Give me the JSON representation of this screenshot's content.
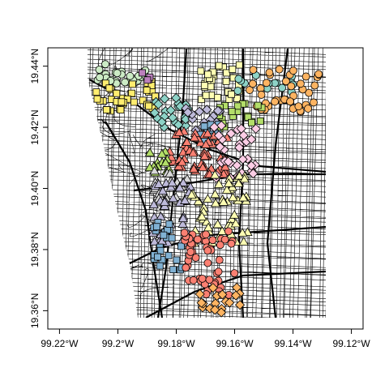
{
  "chart_data": {
    "type": "scatter",
    "title": "",
    "xlabel": "",
    "ylabel": "",
    "xlim": [
      -99.224,
      -99.116
    ],
    "ylim": [
      19.354,
      19.446
    ],
    "x_ticks": [
      {
        "value": -99.22,
        "label": "99.22°W"
      },
      {
        "value": -99.2,
        "label": "99.2°W"
      },
      {
        "value": -99.18,
        "label": "99.18°W"
      },
      {
        "value": -99.16,
        "label": "99.16°W"
      },
      {
        "value": -99.14,
        "label": "99.14°W"
      },
      {
        "value": -99.12,
        "label": "99.12°W"
      }
    ],
    "y_ticks": [
      {
        "value": 19.36,
        "label": "19.36°N"
      },
      {
        "value": 19.38,
        "label": "19.38°N"
      },
      {
        "value": 19.4,
        "label": "19.40°N"
      },
      {
        "value": 19.42,
        "label": "19.42°N"
      },
      {
        "value": 19.44,
        "label": "19.44°N"
      }
    ],
    "basemap": "street network (black lines)",
    "series": [
      {
        "shape": "circle",
        "color": "#ccebc5",
        "region": {
          "lon": [
            -99.207,
            -99.19
          ],
          "lat": [
            19.434,
            19.441
          ]
        },
        "count": 26
      },
      {
        "shape": "square",
        "color": "#ffed6f",
        "region": {
          "lon": [
            -99.208,
            -99.186
          ],
          "lat": [
            19.425,
            19.435
          ]
        },
        "count": 38
      },
      {
        "shape": "square",
        "color": "#bc80bd",
        "region": {
          "lon": [
            -99.194,
            -99.189
          ],
          "lat": [
            19.433,
            19.438
          ]
        },
        "count": 4
      },
      {
        "shape": "diamond",
        "color": "#8dd3c7",
        "region": {
          "lon": [
            -99.188,
            -99.175
          ],
          "lat": [
            19.42,
            19.43
          ]
        },
        "count": 22
      },
      {
        "shape": "square",
        "color": "#ffffb3",
        "region": {
          "lon": [
            -99.172,
            -99.158
          ],
          "lat": [
            19.428,
            19.441
          ]
        },
        "count": 30
      },
      {
        "shape": "circle",
        "color": "#8dd3c7",
        "region": {
          "lon": [
            -99.16,
            -99.14
          ],
          "lat": [
            19.431,
            19.437
          ]
        },
        "count": 14
      },
      {
        "shape": "circle",
        "color": "#fdb462",
        "region": {
          "lon": [
            -99.155,
            -99.131
          ],
          "lat": [
            19.425,
            19.439
          ]
        },
        "count": 40
      },
      {
        "shape": "square",
        "color": "#b3de69",
        "region": {
          "lon": [
            -99.166,
            -99.15
          ],
          "lat": [
            19.419,
            19.428
          ]
        },
        "count": 20
      },
      {
        "shape": "diamond",
        "color": "#bebada",
        "region": {
          "lon": [
            -99.177,
            -99.165
          ],
          "lat": [
            19.418,
            19.427
          ]
        },
        "count": 16
      },
      {
        "shape": "square",
        "color": "#80b1d3",
        "region": {
          "lon": [
            -99.172,
            -99.164
          ],
          "lat": [
            19.414,
            19.421
          ]
        },
        "count": 12
      },
      {
        "shape": "triangle",
        "color": "#fb8072",
        "region": {
          "lon": [
            -99.183,
            -99.162
          ],
          "lat": [
            19.404,
            19.419
          ]
        },
        "count": 60
      },
      {
        "shape": "diamond",
        "color": "#fccde5",
        "region": {
          "lon": [
            -99.167,
            -99.152
          ],
          "lat": [
            19.402,
            19.421
          ]
        },
        "count": 34
      },
      {
        "shape": "triangle",
        "color": "#b3de69",
        "region": {
          "lon": [
            -99.191,
            -99.182
          ],
          "lat": [
            19.405,
            19.414
          ]
        },
        "count": 14
      },
      {
        "shape": "triangle",
        "color": "#d9d9d9",
        "region": {
          "lon": [
            -99.189,
            -99.175
          ],
          "lat": [
            19.396,
            19.406
          ]
        },
        "count": 22
      },
      {
        "shape": "triangle",
        "color": "#bebada",
        "region": {
          "lon": [
            -99.188,
            -99.175
          ],
          "lat": [
            19.382,
            19.402
          ]
        },
        "count": 40
      },
      {
        "shape": "triangle",
        "color": "#ffffb3",
        "region": {
          "lon": [
            -99.175,
            -99.155
          ],
          "lat": [
            19.382,
            19.405
          ]
        },
        "count": 60
      },
      {
        "shape": "square",
        "color": "#80b1d3",
        "region": {
          "lon": [
            -99.188,
            -99.178
          ],
          "lat": [
            19.373,
            19.389
          ]
        },
        "count": 26
      },
      {
        "shape": "circle",
        "color": "#fb8072",
        "region": {
          "lon": [
            -99.178,
            -99.16
          ],
          "lat": [
            19.365,
            19.386
          ]
        },
        "count": 56
      },
      {
        "shape": "diamond",
        "color": "#fdb462",
        "region": {
          "lon": [
            -99.172,
            -99.158
          ],
          "lat": [
            19.359,
            19.368
          ]
        },
        "count": 18
      }
    ]
  }
}
